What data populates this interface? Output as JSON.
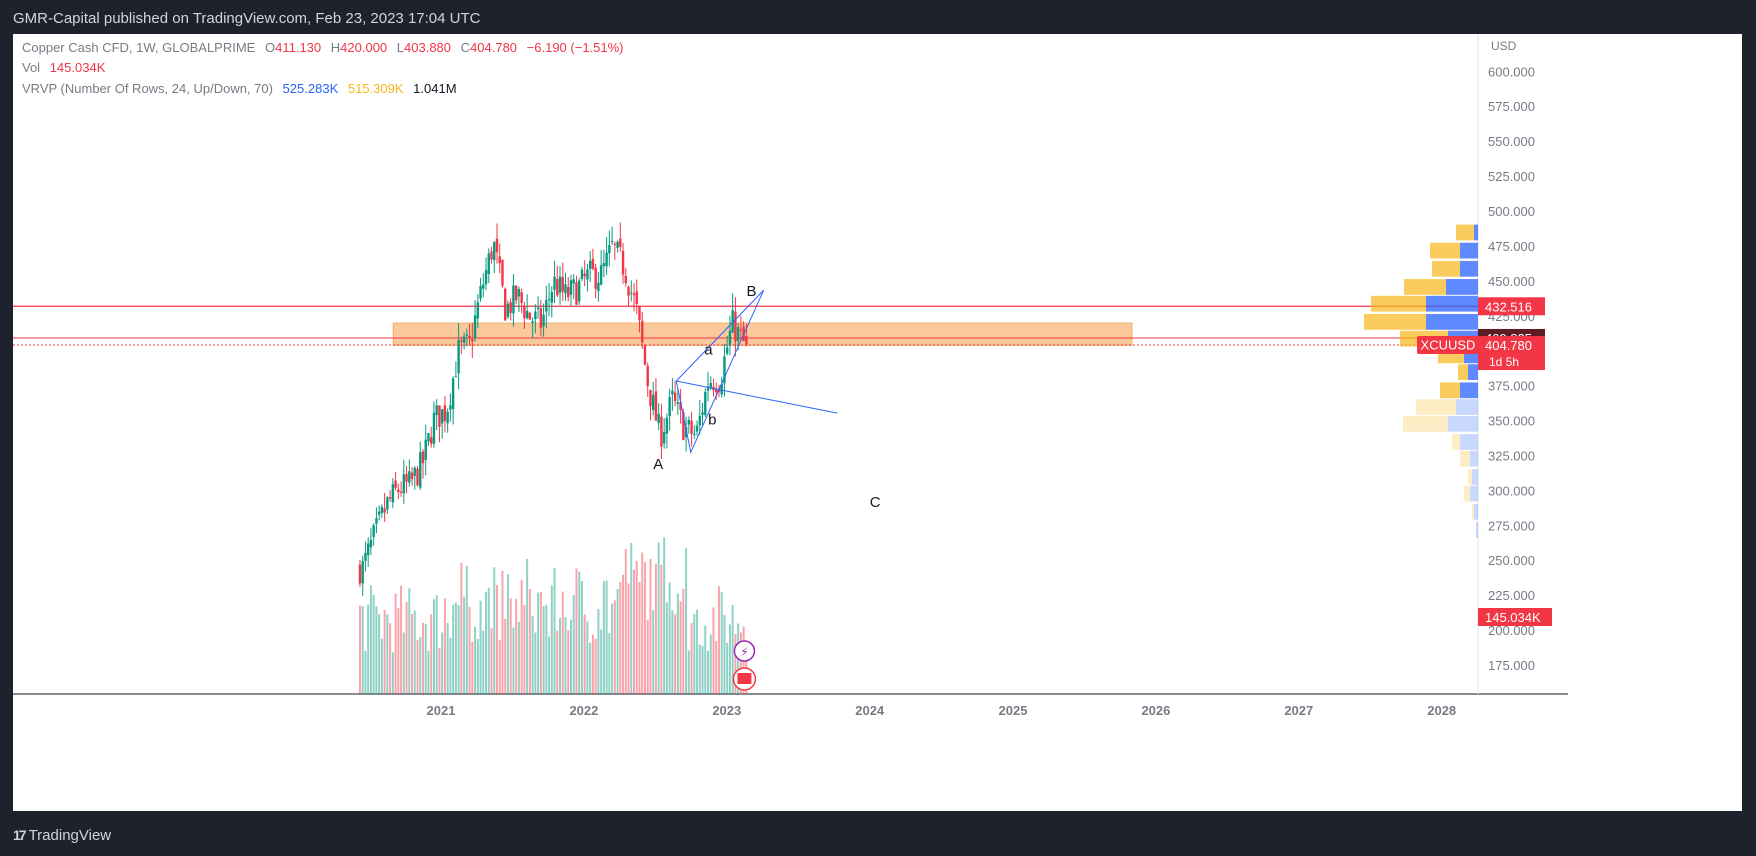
{
  "header": {
    "publish_line": "GMR-Capital published on TradingView.com, Feb 23, 2023 17:04 UTC"
  },
  "legend": {
    "symbol": "Copper Cash CFD, 1W, GLOBALPRIME",
    "open_label": "O",
    "open": "411.130",
    "high_label": "H",
    "high": "420.000",
    "low_label": "L",
    "low": "403.880",
    "close_label": "C",
    "close": "404.780",
    "change": "−6.190 (−1.51%)",
    "vol_label": "Vol",
    "vol": "145.034K",
    "vrvp_label": "VRVP (Number Of Rows, 24, Up/Down, 70)",
    "vrvp_up": "525.283K",
    "vrvp_down": "515.309K",
    "vrvp_total": "1.041M"
  },
  "footer": {
    "brand": "TradingView",
    "logo": "17"
  },
  "chart_data": {
    "type": "candlestick",
    "symbol": "XCUUSD",
    "currency": "USD",
    "interval": "1W",
    "ylim": [
      150,
      625
    ],
    "y_ticks": [
      "600.000",
      "575.000",
      "550.000",
      "525.000",
      "500.000",
      "475.000",
      "450.000",
      "425.000",
      "400.000",
      "375.000",
      "350.000",
      "325.000",
      "300.000",
      "275.000",
      "250.000",
      "225.000",
      "200.000",
      "175.000"
    ],
    "x_ticks": [
      "2021",
      "2022",
      "2023",
      "2024",
      "2025",
      "2026",
      "2027",
      "2028"
    ],
    "price_tags": [
      {
        "label": "432.516",
        "value": 432.516,
        "color": "#f23645"
      },
      {
        "label": "409.825",
        "value": 409.825,
        "color": "#5d1c22"
      },
      {
        "label": "404.780",
        "value": 404.78,
        "color": "#f23645",
        "symbol": "XCUUSD",
        "countdown": "1d 5h"
      }
    ],
    "volume_tag": {
      "label": "145.034K",
      "value": 145.034
    },
    "horizontal_lines": [
      432.516,
      409.825,
      404.78
    ],
    "zone": {
      "from_date": "2020-09-01",
      "to_date": "2025-11-01",
      "low": 404.5,
      "high": 420.5,
      "color": "#f8c08a"
    },
    "wave_labels": [
      {
        "text": "A",
        "date": "2022-07-10",
        "price": 316
      },
      {
        "text": "a",
        "date": "2022-11-15",
        "price": 398
      },
      {
        "text": "b",
        "date": "2022-11-25",
        "price": 348
      },
      {
        "text": "B",
        "date": "2023-03-05",
        "price": 440
      },
      {
        "text": "C",
        "date": "2024-01-15",
        "price": 289
      }
    ],
    "triangle": {
      "points": [
        [
          "2022-08-25",
          379
        ],
        [
          "2022-10-01",
          328
        ],
        [
          "2023-04-05",
          444
        ]
      ],
      "extension": [
        "2023-10-10",
        356
      ]
    },
    "weekly_closes": [
      {
        "date": "2020-06",
        "close": 245
      },
      {
        "date": "2020-07",
        "close": 268
      },
      {
        "date": "2020-08",
        "close": 290
      },
      {
        "date": "2020-09",
        "close": 302
      },
      {
        "date": "2020-10",
        "close": 305
      },
      {
        "date": "2020-11",
        "close": 320
      },
      {
        "date": "2020-12",
        "close": 352
      },
      {
        "date": "2021-01",
        "close": 358
      },
      {
        "date": "2021-02",
        "close": 400
      },
      {
        "date": "2021-03",
        "close": 405
      },
      {
        "date": "2021-04",
        "close": 445
      },
      {
        "date": "2021-05",
        "close": 478
      },
      {
        "date": "2021-06",
        "close": 430
      },
      {
        "date": "2021-07",
        "close": 440
      },
      {
        "date": "2021-08",
        "close": 425
      },
      {
        "date": "2021-09",
        "close": 420
      },
      {
        "date": "2021-10",
        "close": 450
      },
      {
        "date": "2021-11",
        "close": 440
      },
      {
        "date": "2021-12",
        "close": 445
      },
      {
        "date": "2022-01",
        "close": 455
      },
      {
        "date": "2022-02",
        "close": 455
      },
      {
        "date": "2022-03",
        "close": 475
      },
      {
        "date": "2022-04",
        "close": 460
      },
      {
        "date": "2022-05",
        "close": 430
      },
      {
        "date": "2022-06",
        "close": 375
      },
      {
        "date": "2022-07",
        "close": 340
      },
      {
        "date": "2022-08",
        "close": 365
      },
      {
        "date": "2022-09",
        "close": 345
      },
      {
        "date": "2022-10",
        "close": 340
      },
      {
        "date": "2022-11",
        "close": 380
      },
      {
        "date": "2022-12",
        "close": 380
      },
      {
        "date": "2023-01",
        "close": 420
      },
      {
        "date": "2023-02",
        "close": 405
      }
    ]
  }
}
